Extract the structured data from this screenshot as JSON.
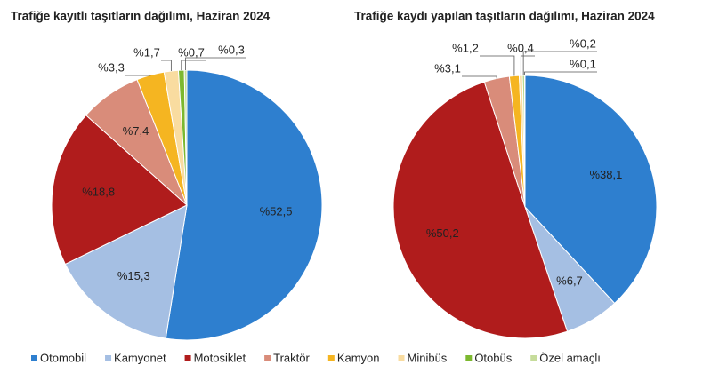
{
  "chart_data": [
    {
      "type": "pie",
      "title": "Trafiğe kayıtlı taşıtların dağılımı, Haziran 2024",
      "values": [
        52.5,
        15.3,
        18.8,
        7.4,
        3.3,
        1.7,
        0.7,
        0.3
      ],
      "value_labels": [
        "%52,5",
        "%15,3",
        "%18,8",
        "%7,4",
        "%3,3",
        "%1,7",
        "%0,7",
        "%0,3"
      ]
    },
    {
      "type": "pie",
      "title": "Trafiğe kaydı yapılan taşıtların dağılımı, Haziran 2024",
      "values": [
        38.1,
        6.7,
        50.2,
        3.1,
        1.2,
        0.4,
        0.2,
        0.1
      ],
      "value_labels": [
        "%38,1",
        "%6,7",
        "%50,2",
        "%3,1",
        "%1,2",
        "%0,4",
        "%0,2",
        "%0,1"
      ]
    }
  ],
  "legend": {
    "categories": [
      "Otomobil",
      "Kamyonet",
      "Motosiklet",
      "Traktör",
      "Kamyon",
      "Minibüs",
      "Otobüs",
      "Özel amaçlı"
    ],
    "colors": [
      "#2e7fcf",
      "#a5bfe3",
      "#b01c1c",
      "#d98c7a",
      "#f5b521",
      "#f9dca0",
      "#7cb82f",
      "#c6dc9b"
    ]
  }
}
